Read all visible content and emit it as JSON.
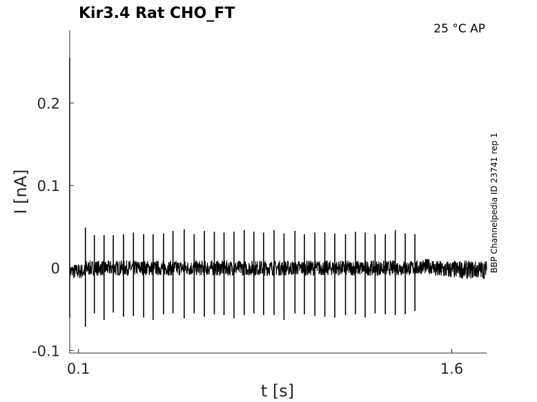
{
  "chart_data": {
    "type": "line",
    "title": "Kir3.4  Rat  CHO_FT",
    "condition": "25 °C  AP",
    "side_label": "BBP Channelpedia ID 23741 rep 1",
    "xlabel": "t [s]",
    "ylabel": "I [nA]",
    "xlim": [
      0.065,
      1.74
    ],
    "ylim": [
      -0.103,
      0.288
    ],
    "x_ticks": [
      {
        "value": 0.1,
        "label": "0.1"
      },
      {
        "value": 1.6,
        "label": "1.6"
      }
    ],
    "y_ticks": [
      {
        "value": -0.1,
        "label": "-0.1"
      },
      {
        "value": 0,
        "label": "0"
      },
      {
        "value": 0.1,
        "label": "0.1"
      },
      {
        "value": 0.2,
        "label": "0.2"
      }
    ],
    "grid": false,
    "trace": {
      "t_start": 0.065,
      "t_end": 1.74,
      "baseline": 0.0,
      "noise_amplitude": 0.009,
      "initial_transient": {
        "t": 0.065,
        "max": 0.255,
        "min": -0.06
      },
      "spikes": [
        {
          "t": 0.128,
          "max": 0.049,
          "min": -0.071
        },
        {
          "t": 0.164,
          "max": 0.04,
          "min": -0.055
        },
        {
          "t": 0.203,
          "max": 0.04,
          "min": -0.063
        },
        {
          "t": 0.24,
          "max": 0.04,
          "min": -0.054
        },
        {
          "t": 0.281,
          "max": 0.041,
          "min": -0.059
        },
        {
          "t": 0.321,
          "max": 0.043,
          "min": -0.058
        },
        {
          "t": 0.362,
          "max": 0.041,
          "min": -0.06
        },
        {
          "t": 0.4,
          "max": 0.041,
          "min": -0.063
        },
        {
          "t": 0.442,
          "max": 0.042,
          "min": -0.056
        },
        {
          "t": 0.48,
          "max": 0.045,
          "min": -0.055
        },
        {
          "t": 0.525,
          "max": 0.047,
          "min": -0.061
        },
        {
          "t": 0.565,
          "max": 0.041,
          "min": -0.055
        },
        {
          "t": 0.606,
          "max": 0.045,
          "min": -0.059
        },
        {
          "t": 0.646,
          "max": 0.044,
          "min": -0.056
        },
        {
          "t": 0.685,
          "max": 0.043,
          "min": -0.057
        },
        {
          "t": 0.725,
          "max": 0.044,
          "min": -0.061
        },
        {
          "t": 0.766,
          "max": 0.046,
          "min": -0.057
        },
        {
          "t": 0.805,
          "max": 0.044,
          "min": -0.055
        },
        {
          "t": 0.844,
          "max": 0.043,
          "min": -0.057
        },
        {
          "t": 0.886,
          "max": 0.046,
          "min": -0.057
        },
        {
          "t": 0.926,
          "max": 0.042,
          "min": -0.063
        },
        {
          "t": 0.97,
          "max": 0.045,
          "min": -0.055
        },
        {
          "t": 1.008,
          "max": 0.041,
          "min": -0.056
        },
        {
          "t": 1.05,
          "max": 0.043,
          "min": -0.058
        },
        {
          "t": 1.09,
          "max": 0.043,
          "min": -0.059
        },
        {
          "t": 1.13,
          "max": 0.042,
          "min": -0.06
        },
        {
          "t": 1.173,
          "max": 0.041,
          "min": -0.057
        },
        {
          "t": 1.213,
          "max": 0.044,
          "min": -0.056
        },
        {
          "t": 1.252,
          "max": 0.043,
          "min": -0.06
        },
        {
          "t": 1.292,
          "max": 0.041,
          "min": -0.055
        },
        {
          "t": 1.333,
          "max": 0.041,
          "min": -0.056
        },
        {
          "t": 1.373,
          "max": 0.046,
          "min": -0.057
        },
        {
          "t": 1.413,
          "max": 0.042,
          "min": -0.056
        },
        {
          "t": 1.452,
          "max": 0.041,
          "min": -0.052
        }
      ]
    },
    "colors": {
      "trace": "#000000",
      "axis": "#262626"
    }
  }
}
